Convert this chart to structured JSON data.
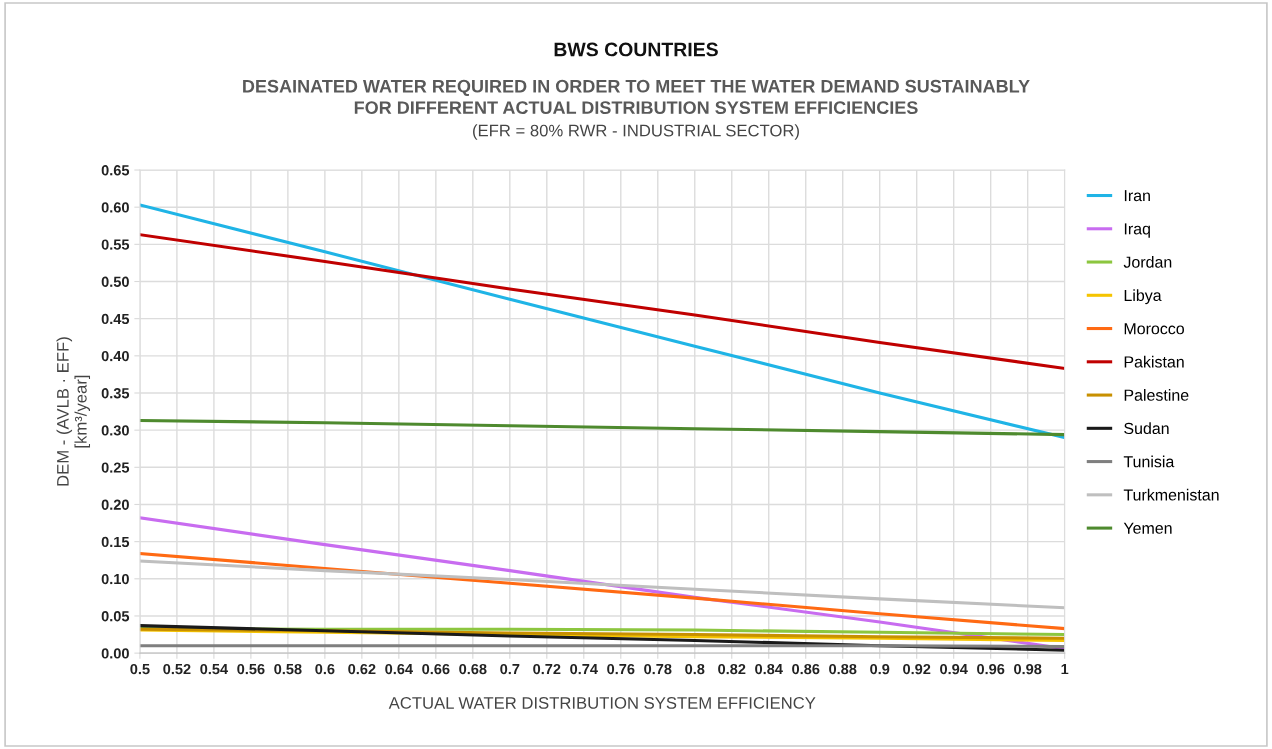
{
  "chart_data": {
    "type": "line",
    "title": "BWS COUNTRIES",
    "subtitle": "DESAINATED WATER REQUIRED IN ORDER TO MEET THE WATER DEMAND SUSTAINABLY\nFOR DIFFERENT ACTUAL DISTRIBUTION SYSTEM EFFICIENCIES",
    "annotations": [
      "(EFR = 80% RWR - INDUSTRIAL SECTOR)"
    ],
    "xlabel": "ACTUAL WATER DISTRIBUTION SYSTEM EFFICIENCY",
    "ylabel": "DEM - (AVLB · EFF)\n[km³/year]",
    "x": [
      0.5,
      0.6,
      0.7,
      0.8,
      0.9,
      1
    ],
    "series": [
      {
        "name": "Iran",
        "color": "#1fb4e6",
        "values": [
          0.603,
          0.54,
          0.476,
          0.413,
          0.35,
          0.29
        ]
      },
      {
        "name": "Iraq",
        "color": "#c86cf0",
        "values": [
          0.182,
          0.146,
          0.111,
          0.075,
          0.042,
          0.006
        ]
      },
      {
        "name": "Jordan",
        "color": "#8cc63f",
        "values": [
          0.033,
          0.032,
          0.032,
          0.031,
          0.028,
          0.025
        ]
      },
      {
        "name": "Libya",
        "color": "#f5c400",
        "values": [
          0.031,
          0.028,
          0.025,
          0.022,
          0.02,
          0.017
        ]
      },
      {
        "name": "Morocco",
        "color": "#ff6a13",
        "values": [
          0.134,
          0.114,
          0.094,
          0.074,
          0.053,
          0.033
        ]
      },
      {
        "name": "Pakistan",
        "color": "#c00000",
        "values": [
          0.563,
          0.527,
          0.49,
          0.455,
          0.418,
          0.383
        ]
      },
      {
        "name": "Palestine",
        "color": "#c89000",
        "values": [
          0.032,
          0.03,
          0.027,
          0.025,
          0.022,
          0.02
        ]
      },
      {
        "name": "Sudan",
        "color": "#1a1a1a",
        "values": [
          0.037,
          0.03,
          0.023,
          0.017,
          0.01,
          0.004
        ]
      },
      {
        "name": "Tunisia",
        "color": "#7f7f7f",
        "values": [
          0.01,
          0.01,
          0.01,
          0.01,
          0.01,
          0.009
        ]
      },
      {
        "name": "Turkmenistan",
        "color": "#bfbfbf",
        "values": [
          0.124,
          0.111,
          0.099,
          0.086,
          0.073,
          0.061
        ]
      },
      {
        "name": "Yemen",
        "color": "#4e8a2e",
        "values": [
          0.313,
          0.31,
          0.306,
          0.302,
          0.298,
          0.294
        ]
      }
    ],
    "xlim": [
      0.5,
      1
    ],
    "xticks": [
      0.5,
      0.52,
      0.54,
      0.56,
      0.58,
      0.6,
      0.62,
      0.64,
      0.66,
      0.68,
      0.7,
      0.72,
      0.74,
      0.76,
      0.78,
      0.8,
      0.82,
      0.84,
      0.86,
      0.88,
      0.9,
      0.92,
      0.94,
      0.96,
      0.98,
      1
    ],
    "ylim": [
      0,
      0.65
    ],
    "yticks": [
      {
        "value": 0,
        "label": "0.00"
      },
      {
        "value": 0.05,
        "label": "0.05"
      },
      {
        "value": 0.1,
        "label": "0.10"
      },
      {
        "value": 0.15,
        "label": "0.15"
      },
      {
        "value": 0.2,
        "label": "0.20"
      },
      {
        "value": 0.25,
        "label": "0.25"
      },
      {
        "value": 0.3,
        "label": "0.30"
      },
      {
        "value": 0.35,
        "label": "0.35"
      },
      {
        "value": 0.4,
        "label": "0.40"
      },
      {
        "value": 0.45,
        "label": "0.45"
      },
      {
        "value": 0.5,
        "label": "0.50"
      },
      {
        "value": 0.55,
        "label": "0.55"
      },
      {
        "value": 0.6,
        "label": "0.60"
      },
      {
        "value": 0.65,
        "label": "0.65"
      }
    ],
    "grid": true,
    "legend": "right",
    "marker": "none",
    "line_style": "solid"
  }
}
